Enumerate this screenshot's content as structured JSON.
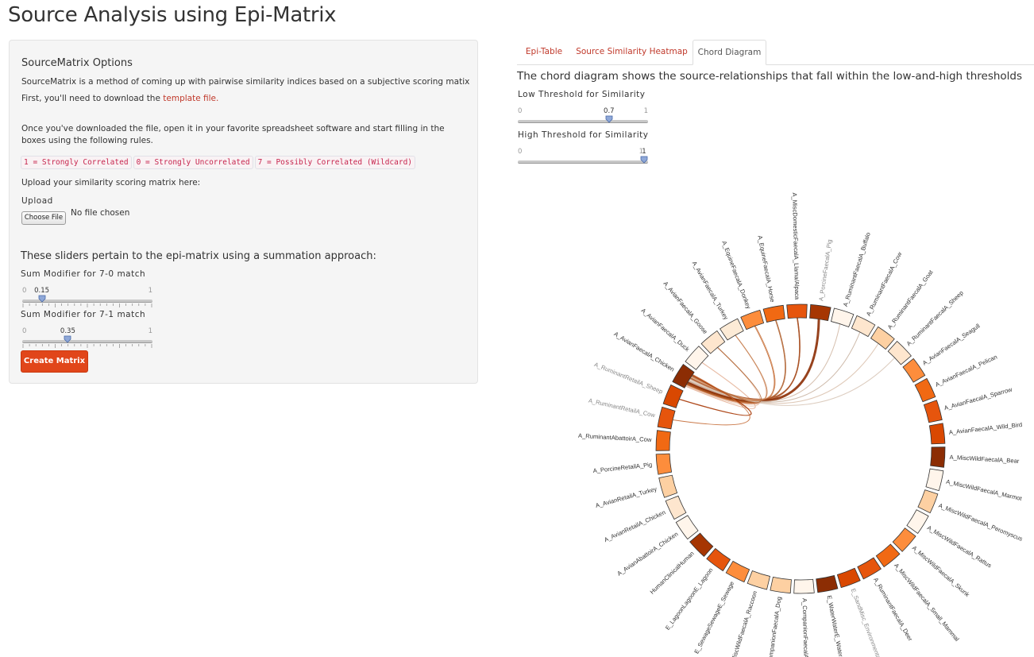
{
  "page": {
    "title": "Source Analysis using Epi-Matrix"
  },
  "sidebar": {
    "title": "SourceMatrix Options",
    "intro": "SourceMatrix is a method of coming up with pairwise similarity indices based on a subjective scoring matix",
    "download_prefix": "First, you'll need to download the ",
    "download_link": "template file.",
    "instructions": "Once you've downloaded the file, open it in your favorite spreadsheet software and start filling in the boxes using the following rules.",
    "rules": [
      "1 = Strongly Correlated",
      "0 = Strongly Uncorrelated",
      "7 = Possibly Correlated (Wildcard)"
    ],
    "upload_prompt": "Upload your similarity scoring matrix here:",
    "upload_label": "Upload",
    "file_button": "Choose File",
    "file_status": "No file chosen",
    "sliders_heading": "These sliders pertain to the epi-matrix using a summation approach:",
    "slider1": {
      "label": "Sum Modifier for 7-0 match",
      "min": "0",
      "max": "1",
      "value": "0.15",
      "fraction": 0.15
    },
    "slider2": {
      "label": "Sum Modifier for 7-1 match",
      "min": "0",
      "max": "1",
      "value": "0.35",
      "fraction": 0.35
    },
    "create_button": "Create Matrix"
  },
  "tabs": [
    {
      "label": "Epi-Table",
      "active": false
    },
    {
      "label": "Source Similarity Heatmap",
      "active": false
    },
    {
      "label": "Chord Diagram",
      "active": true
    }
  ],
  "main": {
    "description": "The chord diagram shows the source-relationships that fall within the low-and-high thresholds",
    "low_threshold": {
      "label": "Low Threshold for Similarity",
      "min": "0",
      "max": "1",
      "value": "0.7",
      "fraction": 0.7
    },
    "high_threshold": {
      "label": "High Threshold for Similarity",
      "min": "0",
      "max": "1",
      "value": "1",
      "fraction": 1.0
    }
  },
  "colors": {
    "accent": "#e1461a",
    "link": "#c0392b"
  },
  "chord_groups": [
    {
      "label": "A_AvianFaecalA_Chicken",
      "color": "#8c2d04"
    },
    {
      "label": "A_AvianFaecalA_Duck",
      "color": "#fff5eb"
    },
    {
      "label": "A_AvianFaecalA_Goose",
      "color": "#fee6ce"
    },
    {
      "label": "A_AvianFaecalA_Turkey",
      "color": "#fdebd6"
    },
    {
      "label": "A_EquineFaecalA_Donkey",
      "color": "#fd8d3c"
    },
    {
      "label": "A_EquineFaecalA_Horse",
      "color": "#f16913"
    },
    {
      "label": "A_MiscDomesticFaecalA_Llama/Alpaca",
      "color": "#e6550d"
    },
    {
      "label": "A_PorcineFaecalA_Pig",
      "color": "#a63603"
    },
    {
      "label": "A_RuminantFaecalA_Buffalo",
      "color": "#fff5eb"
    },
    {
      "label": "A_RuminantFaecalA_Cow",
      "color": "#fee6ce"
    },
    {
      "label": "A_RuminantFaecalA_Goat",
      "color": "#fdd0a2"
    },
    {
      "label": "A_RuminantFaecalA_Sheep",
      "color": "#fee6ce"
    },
    {
      "label": "A_AvianFaecalA_Seagull",
      "color": "#fd8d3c"
    },
    {
      "label": "A_AvianFaecalA_Pelican",
      "color": "#f16913"
    },
    {
      "label": "A_AvianFaecalA_Sparrow",
      "color": "#e6550d"
    },
    {
      "label": "A_AvianFaecalA_Wild_Bird",
      "color": "#d94801"
    },
    {
      "label": "A_MiscWildFaecalA_Bear",
      "color": "#8c2d04"
    },
    {
      "label": "A_MiscWildFaecalA_Marmot",
      "color": "#fff5eb"
    },
    {
      "label": "A_MiscWildFaecalA_Peromyscus",
      "color": "#fdd0a2"
    },
    {
      "label": "A_MiscWildFaecalA_Rattus",
      "color": "#fff5eb"
    },
    {
      "label": "A_MiscWildFaecalA_Skunk",
      "color": "#fd8d3c"
    },
    {
      "label": "A_MiscWildFaecalA_Small_Mammal",
      "color": "#f16913"
    },
    {
      "label": "A_RuminantFaecalA_Deer",
      "color": "#e6550d"
    },
    {
      "label": "E_SandMisc_EnvironmentalE_Sand",
      "color": "#d94801"
    },
    {
      "label": "E_WaterWaterE_Water",
      "color": "#8c2d04"
    },
    {
      "label": "A_CompanionFaecalA_Cat",
      "color": "#fff5eb"
    },
    {
      "label": "A_CompanionFaecalA_Dog",
      "color": "#fdd0a2"
    },
    {
      "label": "A_MiscWildFaecalA_Raccoon",
      "color": "#fdd0a2"
    },
    {
      "label": "E_SewageSewageE_Sewage",
      "color": "#fd8d3c"
    },
    {
      "label": "E_LagoonLagoonE_Lagoon",
      "color": "#e6550d"
    },
    {
      "label": "HumanClinicalHuman",
      "color": "#a63603"
    },
    {
      "label": "A_AvianAbattoirA_Chicken",
      "color": "#fff5eb"
    },
    {
      "label": "A_AvianRetailA_Chicken",
      "color": "#fee6ce"
    },
    {
      "label": "A_AvianRetailA_Turkey",
      "color": "#fdd0a2"
    },
    {
      "label": "A_PorcineRetailA_Pig",
      "color": "#fd8d3c"
    },
    {
      "label": "A_RuminantAbattoirA_Cow",
      "color": "#f16913"
    },
    {
      "label": "A_RuminantRetailA_Cow",
      "color": "#e6550d"
    },
    {
      "label": "A_RuminantRetailA_Sheep",
      "color": "#d94801"
    }
  ]
}
